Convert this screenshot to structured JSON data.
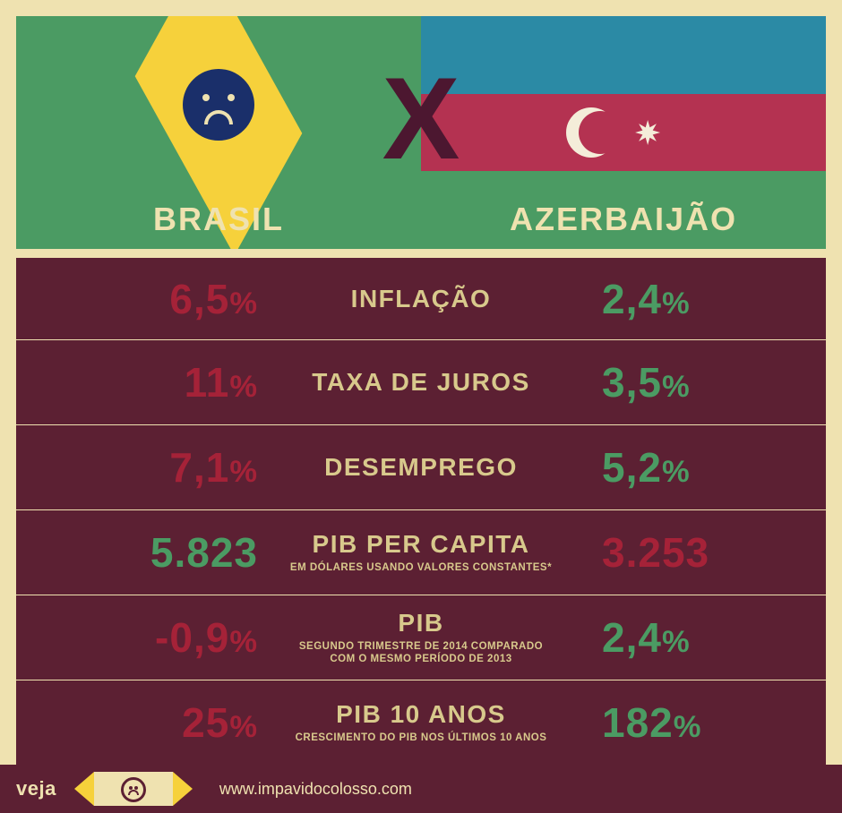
{
  "colors": {
    "page_bg": "#efe2b0",
    "row_bg": "#5c2033",
    "label": "#d8c98c",
    "negative": "#a52238",
    "positive": "#4b9b63",
    "brasil_flag": "#4b9b63",
    "brasil_diamond": "#f6d13b",
    "brasil_circle": "#1a2f6a",
    "azer_blue": "#2b8aa5",
    "azer_red": "#b43251",
    "azer_green": "#4b9b63",
    "vs_x": "#4c1730"
  },
  "header": {
    "left_label": "BRASIL",
    "right_label": "AZERBAIJÃO",
    "vs": "X"
  },
  "rows": [
    {
      "label": "INFLAÇÃO",
      "sub": "",
      "left": "6,5%",
      "right": "2,4%",
      "left_color": "negative",
      "right_color": "positive"
    },
    {
      "label": "TAXA DE JUROS",
      "sub": "",
      "left": "11%",
      "right": "3,5%",
      "left_color": "negative",
      "right_color": "positive"
    },
    {
      "label": "DESEMPREGO",
      "sub": "",
      "left": "7,1%",
      "right": "5,2%",
      "left_color": "negative",
      "right_color": "positive"
    },
    {
      "label": "PIB PER CAPITA",
      "sub": "EM DÓLARES USANDO VALORES CONSTANTES*",
      "left": "5.823",
      "right": "3.253",
      "left_color": "positive",
      "right_color": "negative"
    },
    {
      "label": "PIB",
      "sub": "SEGUNDO TRIMESTRE DE 2014 COMPARADO COM O MESMO PERÍODO DE 2013",
      "left": "-0,9%",
      "right": "2,4%",
      "left_color": "negative",
      "right_color": "positive"
    },
    {
      "label": "PIB 10 ANOS",
      "sub": "CRESCIMENTO DO PIB NOS ÚLTIMOS 10 ANOS",
      "left": "25%",
      "right": "182%",
      "left_color": "negative",
      "right_color": "positive"
    }
  ],
  "footer": {
    "brand": "veja",
    "url": "www.impavidocolosso.com"
  }
}
